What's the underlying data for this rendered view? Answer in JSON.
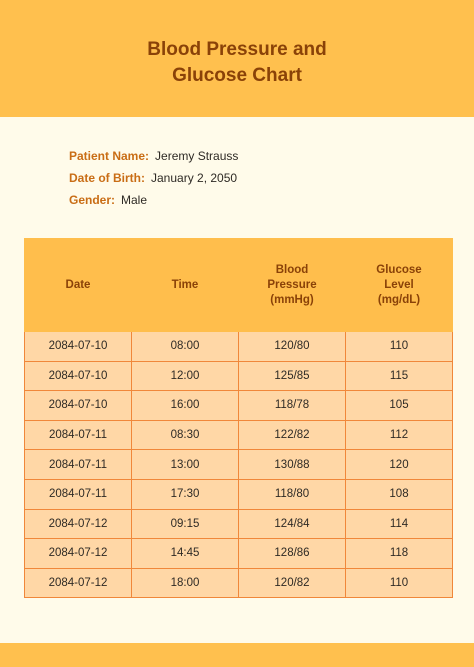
{
  "document": {
    "title_line1": "Blood Pressure and",
    "title_line2": "Glucose Chart"
  },
  "patient": {
    "name_label": "Patient Name:",
    "name_value": "Jeremy Strauss",
    "dob_label": "Date of Birth:",
    "dob_value": "January 2, 2050",
    "gender_label": "Gender:",
    "gender_value": "Male"
  },
  "table": {
    "headers": {
      "date": "Date",
      "time": "Time",
      "bp_line1": "Blood",
      "bp_line2": "Pressure",
      "bp_line3": "(mmHg)",
      "gl_line1": "Glucose",
      "gl_line2": "Level",
      "gl_line3": "(mg/dL)"
    },
    "rows": [
      {
        "date": "2084-07-10",
        "time": "08:00",
        "bp": "120/80",
        "glucose": "110"
      },
      {
        "date": "2084-07-10",
        "time": "12:00",
        "bp": "125/85",
        "glucose": "115"
      },
      {
        "date": "2084-07-10",
        "time": "16:00",
        "bp": "118/78",
        "glucose": "105"
      },
      {
        "date": "2084-07-11",
        "time": "08:30",
        "bp": "122/82",
        "glucose": "112"
      },
      {
        "date": "2084-07-11",
        "time": "13:00",
        "bp": "130/88",
        "glucose": "120"
      },
      {
        "date": "2084-07-11",
        "time": "17:30",
        "bp": "118/80",
        "glucose": "108"
      },
      {
        "date": "2084-07-12",
        "time": "09:15",
        "bp": "124/84",
        "glucose": "114"
      },
      {
        "date": "2084-07-12",
        "time": "14:45",
        "bp": "128/86",
        "glucose": "118"
      },
      {
        "date": "2084-07-12",
        "time": "18:00",
        "bp": "120/82",
        "glucose": "110"
      }
    ]
  },
  "colors": {
    "banner": "#ffc04e",
    "title": "#8a4208",
    "label": "#c96d15",
    "cell": "#ffd7a6",
    "cell_border": "#f0873a",
    "page": "#fffbea"
  }
}
